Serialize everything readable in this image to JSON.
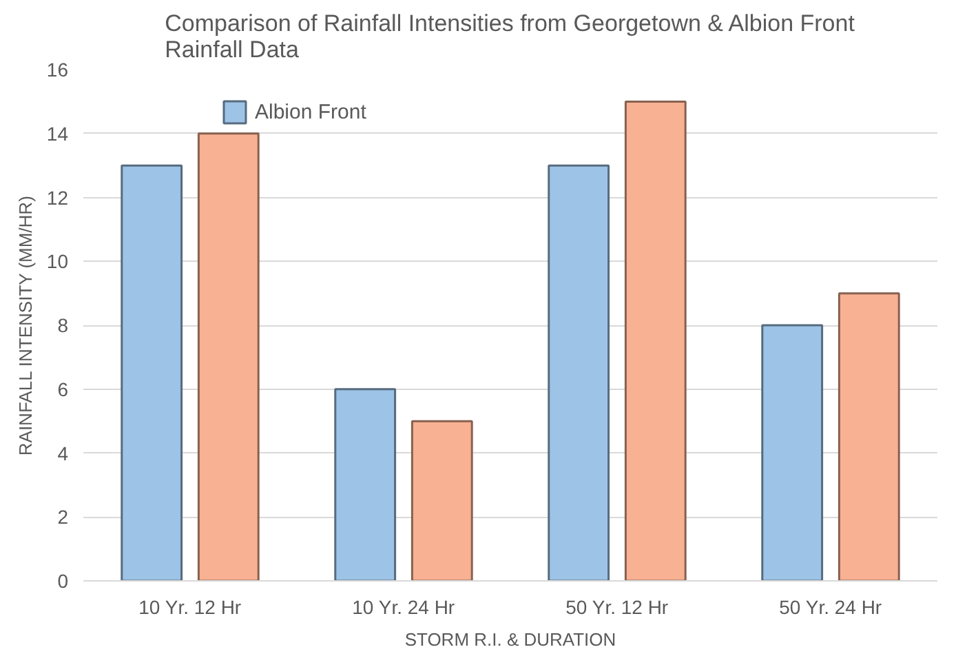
{
  "chart_data": {
    "type": "bar",
    "title": "Comparison of Rainfall Intensities from Georgetown & Albion Front Rainfall Data",
    "xlabel": "STORM R.I. & DURATION",
    "ylabel": "RAINFALL INTENSITY (MM/HR)",
    "categories": [
      "10 Yr. 12 Hr",
      "10 Yr. 24 Hr",
      "50 Yr. 12 Hr",
      "50 Yr. 24 Hr"
    ],
    "series": [
      {
        "name": "Albion Front",
        "color": "#9dc3e6",
        "values": [
          13,
          6,
          13,
          8
        ]
      },
      {
        "color": "#f8b193",
        "values": [
          14,
          5,
          15,
          9
        ]
      }
    ],
    "ylim": [
      0,
      16
    ],
    "yticks": [
      0,
      2,
      4,
      6,
      8,
      10,
      12,
      14,
      16
    ],
    "grid": "y",
    "legend": "top left"
  }
}
